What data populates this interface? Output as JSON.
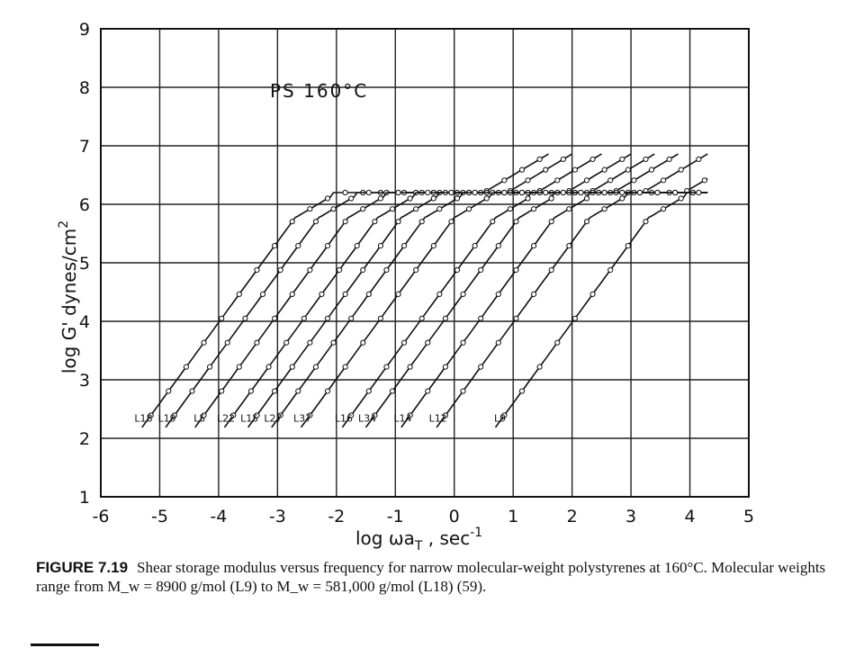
{
  "chart_data": {
    "type": "line",
    "annotation": "PS  160°C",
    "xlabel": "log ωa",
    "xlabel_sub": "T",
    "xlabel_unit": " , sec",
    "xlabel_sup": "-1",
    "ylabel": "log G'   dynes/cm",
    "ylabel_sup": "2",
    "xlim": [
      -6,
      5
    ],
    "ylim": [
      1,
      9
    ],
    "x_ticks": [
      "-6",
      "-5",
      "-4",
      "-3",
      "-2",
      "-1",
      "0",
      "1",
      "2",
      "3",
      "4",
      "5"
    ],
    "y_ticks": [
      "1",
      "2",
      "3",
      "4",
      "5",
      "6",
      "7",
      "8",
      "9"
    ],
    "grid": true,
    "series": [
      {
        "name": "L18",
        "shift": -5.0,
        "plateau": 6.2
      },
      {
        "name": "L19",
        "shift": -4.6,
        "plateau": 6.2
      },
      {
        "name": "L5",
        "shift": -4.1,
        "plateau": 6.2
      },
      {
        "name": "L22",
        "shift": -3.6,
        "plateau": 6.2
      },
      {
        "name": "L15",
        "shift": -3.2,
        "plateau": 6.2
      },
      {
        "name": "L27",
        "shift": -2.8,
        "plateau": 6.2
      },
      {
        "name": "L37",
        "shift": -2.3,
        "plateau": 6.2
      },
      {
        "name": "L34",
        "shift": -1.2,
        "plateau": 6.2
      },
      {
        "name": "L16",
        "shift": -1.6,
        "plateau": 6.2
      },
      {
        "name": "L14",
        "shift": -0.6,
        "plateau": 6.2
      },
      {
        "name": "L12",
        "shift": 0.0,
        "plateau": 6.2
      },
      {
        "name": "L9",
        "shift": 1.0,
        "plateau": 6.2
      }
    ]
  },
  "caption": {
    "figure_label": "FIGURE 7.19",
    "text": "Shear storage modulus versus frequency for narrow molecular-weight polystyrenes at 160°C. Molecular weights range from M_w = 8900 g/mol (L9) to M_w = 581,000 g/mol (L18) (59)."
  }
}
